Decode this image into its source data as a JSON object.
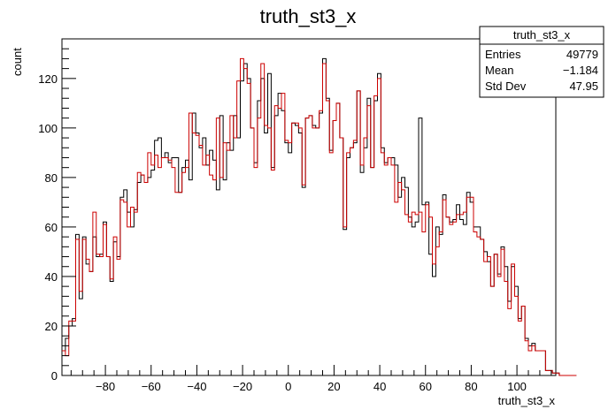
{
  "chart_data": {
    "type": "histogram",
    "title": "truth_st3_x",
    "xlabel": "truth_st3_x",
    "ylabel": "count",
    "xlim": [
      -99,
      117
    ],
    "ylim": [
      0,
      136
    ],
    "x_ticks": [
      -80,
      -60,
      -40,
      -20,
      0,
      20,
      40,
      60,
      80,
      100
    ],
    "y_ticks": [
      0,
      20,
      40,
      60,
      80,
      100,
      120
    ],
    "grid": false,
    "stats_box": {
      "title": "truth_st3_x",
      "rows": [
        {
          "label": "Entries",
          "value": "49779"
        },
        {
          "label": "Mean",
          "value": "−1.184"
        },
        {
          "label": "Std Dev",
          "value": "47.95"
        }
      ]
    },
    "bin_width": 1.5,
    "x_start": -99,
    "series": [
      {
        "color": "#000000",
        "values": [
          10,
          15,
          20,
          23,
          57,
          31,
          56,
          45,
          42,
          56,
          48,
          49,
          62,
          48,
          38,
          54,
          48,
          72,
          75,
          66,
          60,
          67,
          78,
          81,
          78,
          80,
          83,
          95,
          96,
          88,
          90,
          86,
          88,
          88,
          74,
          84,
          87,
          79,
          106,
          98,
          92,
          96,
          85,
          91,
          87,
          75,
          105,
          79,
          94,
          91,
          105,
          96,
          119,
          126,
          120,
          100,
          86,
          111,
          120,
          98,
          122,
          84,
          105,
          114,
          107,
          94,
          90,
          102,
          101,
          98,
          76,
          104,
          105,
          101,
          100,
          106,
          128,
          112,
          91,
          103,
          110,
          96,
          59,
          88,
          92,
          94,
          115,
          82,
          92,
          112,
          84,
          111,
          122,
          92,
          86,
          88,
          88,
          85,
          72,
          80,
          76,
          64,
          60,
          62,
          104,
          69,
          70,
          49,
          40,
          60,
          57,
          73,
          64,
          62,
          63,
          69,
          63,
          61,
          74,
          70,
          60,
          60,
          55,
          50,
          46,
          36,
          49,
          41,
          52,
          44,
          30,
          44,
          36,
          23,
          28,
          15,
          12,
          13,
          10,
          10,
          10,
          2,
          2,
          1,
          1,
          0,
          0,
          0,
          0,
          0
        ]
      },
      {
        "color": "#cc0000",
        "values": [
          10,
          8,
          22,
          22,
          55,
          34,
          55,
          47,
          42,
          66,
          49,
          48,
          61,
          48,
          39,
          56,
          47,
          71,
          70,
          60,
          68,
          66,
          82,
          81,
          78,
          90,
          85,
          89,
          84,
          88,
          88,
          87,
          84,
          74,
          74,
          82,
          84,
          106,
          98,
          97,
          93,
          85,
          89,
          81,
          79,
          104,
          80,
          94,
          91,
          105,
          96,
          119,
          128,
          124,
          118,
          100,
          84,
          104,
          126,
          101,
          100,
          83,
          109,
          108,
          114,
          95,
          94,
          102,
          102,
          100,
          77,
          104,
          105,
          100,
          100,
          107,
          126,
          111,
          90,
          103,
          110,
          96,
          60,
          90,
          92,
          95,
          115,
          85,
          96,
          109,
          84,
          113,
          120,
          90,
          85,
          88,
          85,
          70,
          78,
          75,
          65,
          62,
          66,
          65,
          66,
          58,
          69,
          64,
          45,
          52,
          58,
          71,
          64,
          61,
          62,
          65,
          65,
          66,
          72,
          72,
          58,
          56,
          55,
          46,
          48,
          36,
          49,
          40,
          51,
          38,
          27,
          45,
          32,
          22,
          28,
          14,
          10,
          12,
          10,
          10,
          10,
          2,
          2,
          1,
          1,
          0,
          0,
          0,
          0,
          0
        ]
      }
    ]
  }
}
